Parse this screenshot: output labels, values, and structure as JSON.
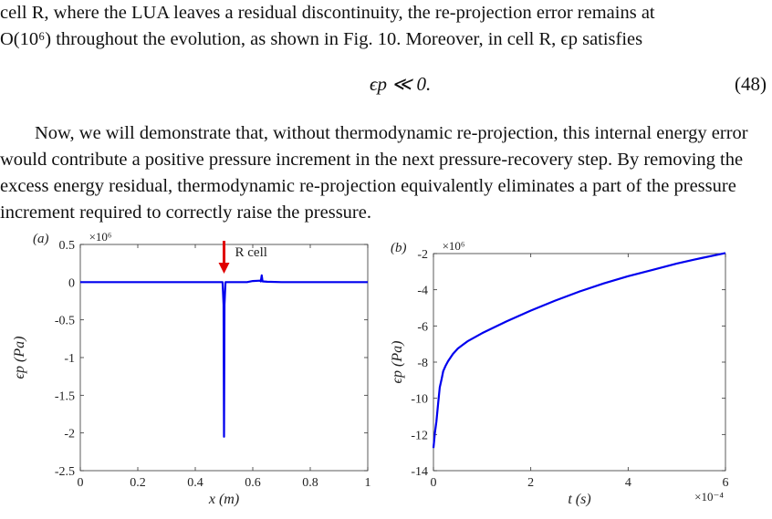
{
  "para1": {
    "line1": "cell R, where the LUA leaves a residual discontinuity, the re-projection error remains at",
    "line2": "O(10⁶) throughout the evolution, as shown in Fig. 10. Moreover, in cell R, ϵp satisfies"
  },
  "equation": {
    "expr": "ϵp ≪ 0.",
    "number": "(48)"
  },
  "para2": {
    "line1": "Now, we will demonstrate that, without thermodynamic re-projection, this internal",
    "line2": "energy error would contribute a positive pressure increment in the next pressure-recovery",
    "line3": "step. By removing the excess energy residual, thermodynamic re-projection equivalently",
    "line4": "eliminates a part of the pressure increment required to correctly raise the pressure."
  },
  "chart_data": [
    {
      "type": "line",
      "panel_label": "(a)",
      "xlabel": "x (m)",
      "ylabel": "ϵp (Pa)",
      "multiplier": "×10⁶",
      "xlim": [
        0,
        1
      ],
      "ylim": [
        -2.5,
        0.5
      ],
      "xticks": [
        "0",
        "0.2",
        "0.4",
        "0.6",
        "0.8",
        "1"
      ],
      "yticks": [
        "0.5",
        "0",
        "-0.5",
        "-1",
        "-1.5",
        "-2",
        "-2.5"
      ],
      "annotation": "R cell",
      "annotation_x": 0.5,
      "series": [
        {
          "color": "#0000ee",
          "x": [
            0,
            0.495,
            0.4985,
            0.5,
            0.5015,
            0.505,
            0.58,
            0.6,
            0.625,
            0.628,
            0.631,
            0.634,
            0.65,
            0.7,
            1
          ],
          "y": [
            0,
            0,
            -0.3,
            -2.05,
            -0.3,
            0,
            0,
            0.015,
            0.02,
            0.01,
            0.09,
            0.01,
            0.005,
            0,
            0
          ]
        }
      ]
    },
    {
      "type": "line",
      "panel_label": "(b)",
      "xlabel": "t (s)",
      "ylabel": "ϵp (Pa)",
      "multiplier": "×10⁶",
      "x_multiplier": "×10⁻⁴",
      "xlim": [
        0,
        6
      ],
      "ylim": [
        -14,
        -2
      ],
      "xticks": [
        "0",
        "2",
        "4",
        "6"
      ],
      "yticks": [
        "-2",
        "-4",
        "-6",
        "-8",
        "-10",
        "-12",
        "-14"
      ],
      "series": [
        {
          "color": "#0000ee",
          "x": [
            0,
            0.03,
            0.06,
            0.1,
            0.13,
            0.17,
            0.2,
            0.25,
            0.3,
            0.4,
            0.5,
            0.7,
            1.0,
            1.5,
            2,
            2.5,
            3,
            3.5,
            4,
            4.5,
            5,
            5.5,
            6
          ],
          "y": [
            -12.75,
            -11.9,
            -11.3,
            -10.2,
            -9.4,
            -8.9,
            -8.5,
            -8.2,
            -7.95,
            -7.55,
            -7.25,
            -6.85,
            -6.4,
            -5.75,
            -5.15,
            -4.6,
            -4.1,
            -3.65,
            -3.25,
            -2.9,
            -2.55,
            -2.25,
            -1.97
          ]
        }
      ]
    }
  ]
}
